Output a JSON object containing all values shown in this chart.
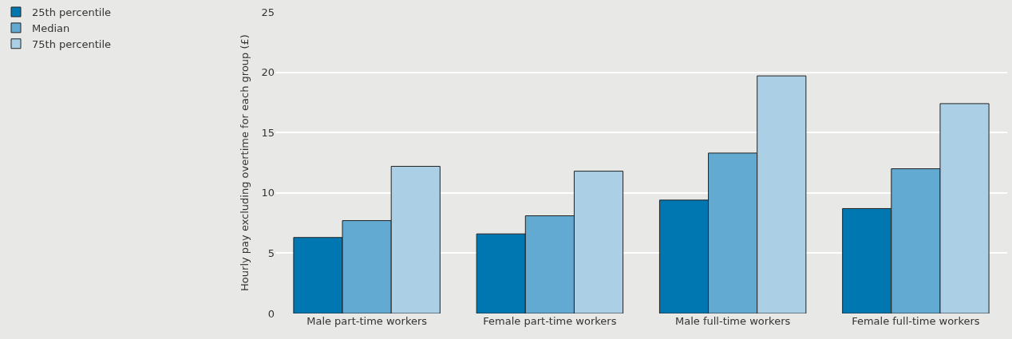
{
  "chart_data": {
    "type": "bar",
    "ylabel": "Hourly pay excluding overtime for each group (£)",
    "categories": [
      "Male part-time workers",
      "Female part-time workers",
      "Male full-time workers",
      "Female full-time workers"
    ],
    "series": [
      {
        "name": "25th percentile",
        "color": "#0077b0",
        "values": [
          6.3,
          6.6,
          9.4,
          8.7
        ]
      },
      {
        "name": "Median",
        "color": "#63aad2",
        "values": [
          7.7,
          8.1,
          13.3,
          12.0
        ]
      },
      {
        "name": "75th percentile",
        "color": "#abd0e6",
        "values": [
          12.2,
          11.8,
          19.7,
          17.4
        ]
      }
    ],
    "ylim": [
      0,
      25
    ],
    "yticks": [
      0,
      5,
      10,
      15,
      20,
      25
    ],
    "grid": "y",
    "legend": "top left"
  }
}
